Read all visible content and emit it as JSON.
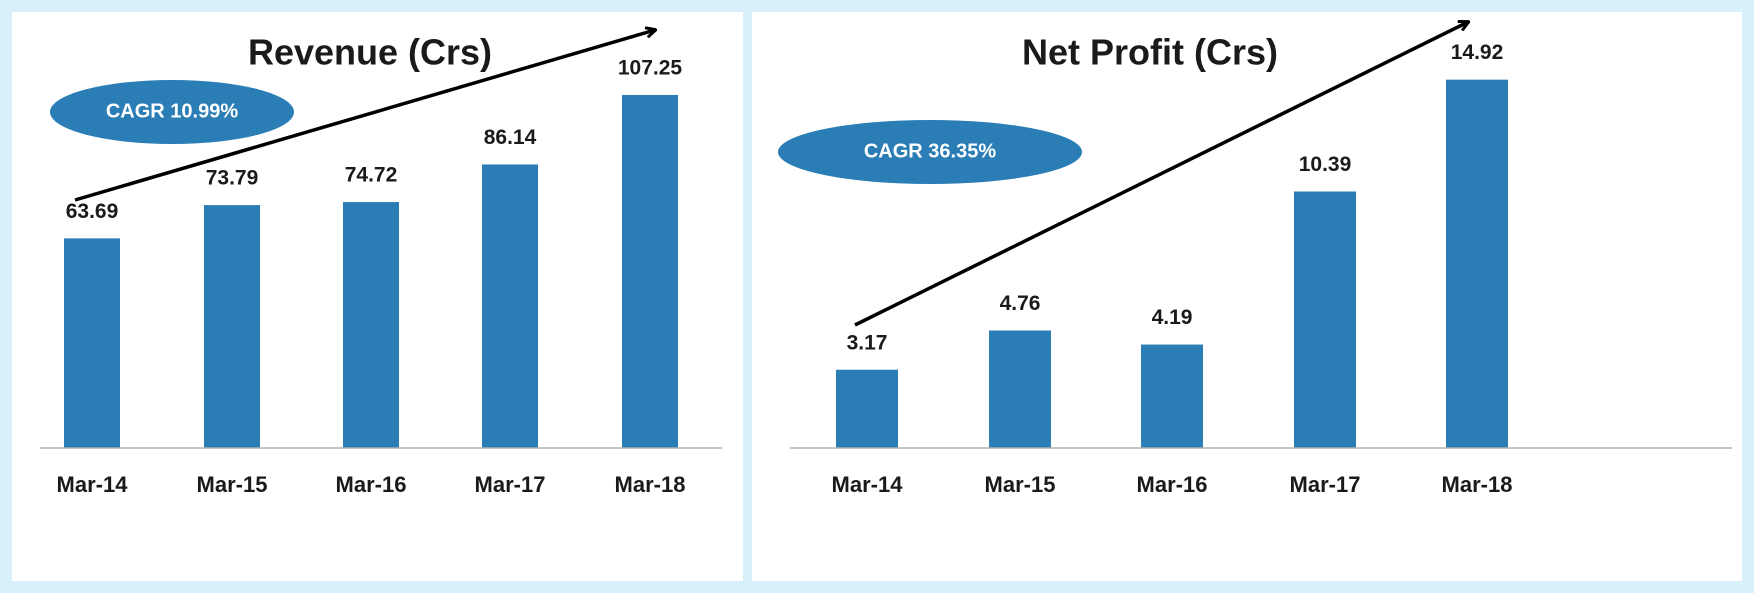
{
  "chart_data": [
    {
      "type": "bar",
      "title": "Revenue (Crs)",
      "annotation": "CAGR 10.99%",
      "categories": [
        "Mar-14",
        "Mar-15",
        "Mar-16",
        "Mar-17",
        "Mar-18"
      ],
      "values": [
        63.69,
        73.79,
        74.72,
        86.14,
        107.25
      ],
      "color": "#2a7db5",
      "ylim": [
        0,
        120
      ]
    },
    {
      "type": "bar",
      "title": "Net Profit (Crs)",
      "annotation": "CAGR 36.35%",
      "categories": [
        "Mar-14",
        "Mar-15",
        "Mar-16",
        "Mar-17",
        "Mar-18"
      ],
      "values": [
        3.17,
        4.76,
        4.19,
        10.39,
        14.92
      ],
      "color": "#2a7db5",
      "ylim": [
        0,
        16
      ]
    }
  ]
}
